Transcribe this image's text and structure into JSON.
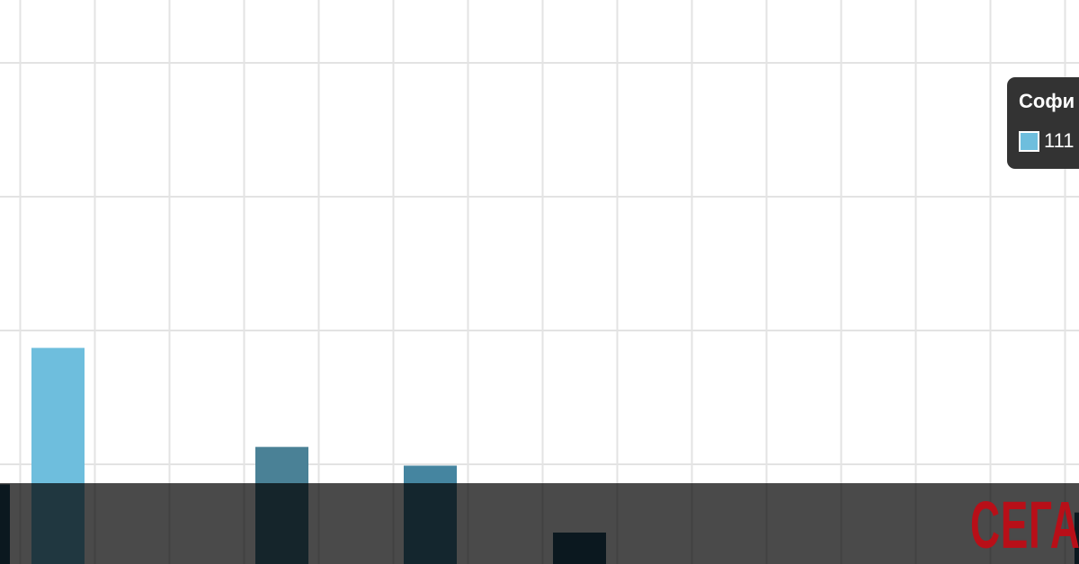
{
  "chart_data": {
    "type": "bar",
    "title": "",
    "xlabel": "",
    "ylabel": "",
    "grid": true,
    "ylim": [
      0,
      4
    ],
    "categories": [
      "",
      "",
      "",
      "",
      "",
      ""
    ],
    "values": [
      0.85,
      1.87,
      1.13,
      0.99,
      0.49,
      0.64
    ],
    "bar_colors": [
      "#27556b",
      "#6ebedd",
      "#4a8196",
      "#4585a0",
      "#27556b",
      "#27556b"
    ]
  },
  "tooltip": {
    "title": "Софи",
    "value": "111",
    "swatch_color": "#6ebedd"
  },
  "logo": {
    "text": "СЕГА",
    "color": "#b80f18"
  }
}
